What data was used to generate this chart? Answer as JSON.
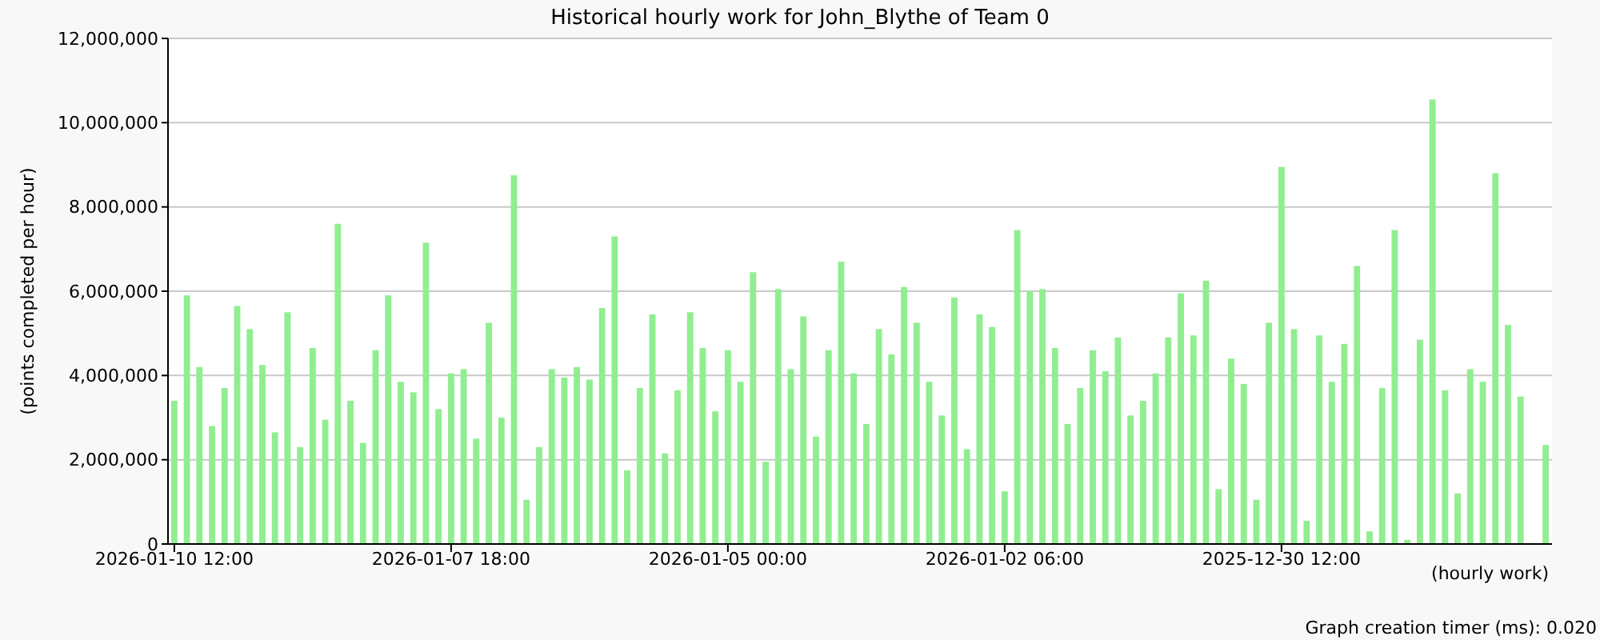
{
  "chart_data": {
    "type": "bar",
    "title": "Historical hourly work for John_Blythe of Team 0",
    "xlabel": "(hourly work)",
    "ylabel": "(points completed per hour)",
    "annotations": [
      "Graph creation timer (ms): 0.020"
    ],
    "categories": [
      "2026-01-10 12:00",
      null,
      null,
      null,
      null,
      null,
      null,
      null,
      null,
      null,
      null,
      null,
      null,
      null,
      null,
      null,
      null,
      null,
      null,
      null,
      null,
      null,
      "2026-01-07 18:00",
      null,
      null,
      null,
      null,
      null,
      null,
      null,
      null,
      null,
      null,
      null,
      null,
      null,
      null,
      null,
      null,
      null,
      null,
      null,
      null,
      null,
      "2026-01-05 00:00",
      null,
      null,
      null,
      null,
      null,
      null,
      null,
      null,
      null,
      null,
      null,
      null,
      null,
      null,
      null,
      null,
      null,
      null,
      null,
      null,
      null,
      "2026-01-02 06:00",
      null,
      null,
      null,
      null,
      null,
      null,
      null,
      null,
      null,
      null,
      null,
      null,
      null,
      null,
      null,
      null,
      null,
      null,
      null,
      null,
      null,
      "2025-12-30 12:00",
      null,
      null,
      null,
      null,
      null,
      null,
      null,
      null,
      null,
      null,
      null,
      null,
      null,
      null,
      null,
      null,
      null,
      null,
      null,
      null,
      null
    ],
    "values": [
      3400000,
      5900000,
      4200000,
      2800000,
      3700000,
      5650000,
      5100000,
      4250000,
      2650000,
      5500000,
      2300000,
      4650000,
      2950000,
      7600000,
      3400000,
      2400000,
      4600000,
      5900000,
      3850000,
      3600000,
      7150000,
      3200000,
      4050000,
      4150000,
      2500000,
      5250000,
      3000000,
      8750000,
      1050000,
      2300000,
      4150000,
      3950000,
      4200000,
      3900000,
      5600000,
      7300000,
      1750000,
      3700000,
      5450000,
      2150000,
      3650000,
      5500000,
      4650000,
      3150000,
      4600000,
      3850000,
      6450000,
      1950000,
      6050000,
      4150000,
      5400000,
      2550000,
      4600000,
      6700000,
      4050000,
      2850000,
      5100000,
      4500000,
      6100000,
      5250000,
      3850000,
      3050000,
      5850000,
      2250000,
      5450000,
      5150000,
      1250000,
      7450000,
      6000000,
      6050000,
      4650000,
      2850000,
      3700000,
      4600000,
      4100000,
      4900000,
      3050000,
      3400000,
      4050000,
      4900000,
      5950000,
      4950000,
      6250000,
      1300000,
      4400000,
      3800000,
      1050000,
      5250000,
      8950000,
      5100000,
      550000,
      4950000,
      3850000,
      4750000,
      6600000,
      300000,
      3700000,
      7450000,
      100000,
      4850000,
      10550000,
      3650000,
      1200000,
      4150000,
      3850000,
      8800000,
      5200000,
      3500000,
      0,
      2350000
    ],
    "color": "#90ee90",
    "ylim": [
      0,
      12000000
    ],
    "yticks": [
      {
        "value": 0,
        "label": "0"
      },
      {
        "value": 2000000,
        "label": "2,000,000"
      },
      {
        "value": 4000000,
        "label": "4,000,000"
      },
      {
        "value": 6000000,
        "label": "6,000,000"
      },
      {
        "value": 8000000,
        "label": "8,000,000"
      },
      {
        "value": 10000000,
        "label": "10,000,000"
      },
      {
        "value": 12000000,
        "label": "12,000,000"
      }
    ],
    "grid": "y"
  }
}
